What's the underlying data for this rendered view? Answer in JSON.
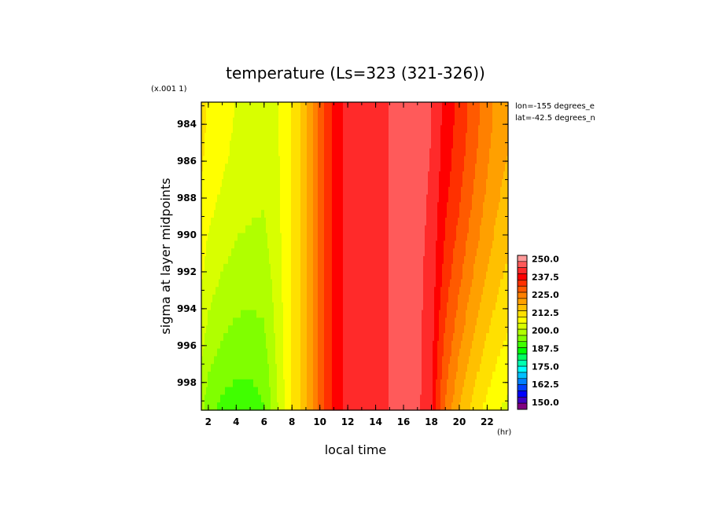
{
  "chart_data": {
    "type": "heatmap",
    "title": "temperature (Ls=323 (321-326))",
    "y_multiplier_label": "(x.001 1)",
    "xlabel": "local time",
    "x_unit_label": "(hr)",
    "ylabel": "sigma at layer midpoints",
    "x_ticks": [
      "2",
      "4",
      "6",
      "8",
      "10",
      "12",
      "14",
      "16",
      "18",
      "20",
      "22"
    ],
    "y_ticks": [
      "984",
      "986",
      "988",
      "990",
      "992",
      "994",
      "996",
      "998"
    ],
    "xlim": [
      1.5,
      23.5
    ],
    "ylim": [
      999.5,
      982.8
    ],
    "info_lines": [
      "lon=-155 degrees_e",
      "lat=-42.5 degrees_n"
    ],
    "colorbar": {
      "tick_labels": [
        "250.0",
        "237.5",
        "225.0",
        "212.5",
        "200.0",
        "187.5",
        "175.0",
        "162.5",
        "150.0"
      ],
      "range": [
        145,
        252.5
      ],
      "colors": [
        "#ff9a9a",
        "#ff5a5a",
        "#ff2a2a",
        "#ff0000",
        "#ff3000",
        "#ff5a00",
        "#ff8000",
        "#ffa000",
        "#ffc000",
        "#ffe000",
        "#ffff00",
        "#d8ff00",
        "#b0ff00",
        "#80ff00",
        "#40ff00",
        "#00ff00",
        "#00ff60",
        "#00ffb0",
        "#00ffff",
        "#00c0ff",
        "#0080ff",
        "#0040ff",
        "#0000ff",
        "#4000c0",
        "#800080"
      ]
    },
    "x_hours": [
      1.5,
      2,
      3,
      4,
      5,
      6,
      7,
      8,
      8.5,
      9,
      9.5,
      10,
      11,
      11.5,
      12,
      12.5,
      13,
      14,
      14.5,
      15,
      16,
      17,
      18,
      18.5,
      19,
      20,
      21,
      22,
      23,
      23.5
    ],
    "temps_top": [
      211,
      209,
      207,
      205,
      204,
      203,
      205,
      210,
      213,
      217,
      222,
      229,
      236,
      239,
      242,
      241,
      240,
      240,
      242,
      244,
      245,
      245,
      244,
      241,
      238,
      234,
      229,
      224,
      220,
      219
    ],
    "temps_bottom": [
      198,
      194,
      191,
      190,
      190,
      192,
      201,
      210,
      213,
      217,
      222,
      229,
      236,
      239,
      242,
      241,
      240,
      240,
      242,
      244,
      247,
      245,
      240,
      232,
      226,
      218,
      212,
      208,
      205,
      204
    ]
  }
}
